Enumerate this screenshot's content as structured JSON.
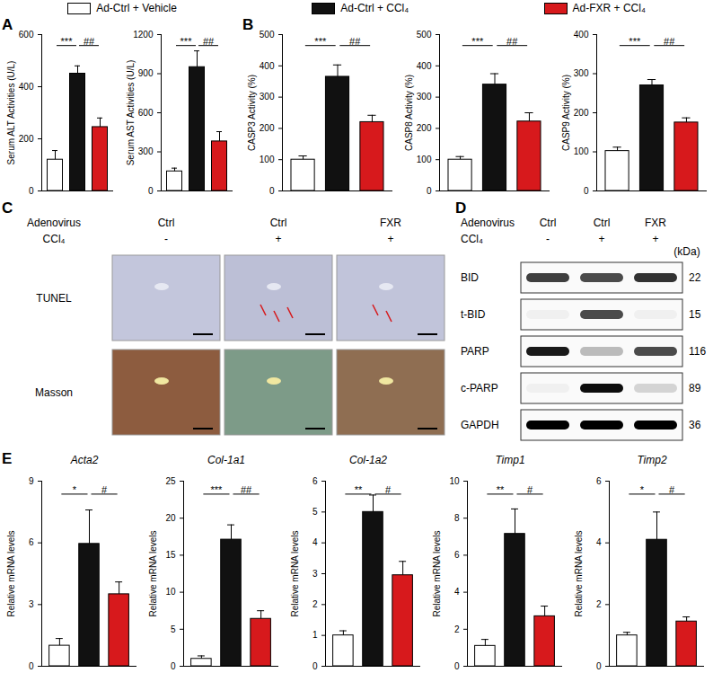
{
  "chart_data": [
    {
      "type": "bar",
      "panel": "A",
      "legend": "top",
      "categories": [
        "Ad-Ctrl + Vehicle",
        "Ad-Ctrl + CCl₄",
        "Ad-FXR + CCl₄"
      ],
      "colors": [
        "#ffffff",
        "#111111",
        "#d7191c"
      ],
      "y_label": "Serum ALT Activities (U/L)",
      "values": [
        120,
        450,
        245
      ],
      "errors": [
        35,
        30,
        35
      ],
      "significance": [
        "***",
        "##"
      ],
      "ylim": [
        0,
        600
      ],
      "yticks": [
        0,
        200,
        400,
        600
      ],
      "tick_labels": "y"
    },
    {
      "type": "bar",
      "categories": [
        "Ad-Ctrl + Vehicle",
        "Ad-Ctrl + CCl₄",
        "Ad-FXR + CCl₄"
      ],
      "colors": [
        "#ffffff",
        "#111111",
        "#d7191c"
      ],
      "y_label": "Serum AST Activities (U/L)",
      "values": [
        150,
        950,
        380
      ],
      "errors": [
        25,
        125,
        75
      ],
      "significance": [
        "***",
        "##"
      ],
      "ylim": [
        0,
        1200
      ],
      "yticks": [
        0,
        300,
        600,
        900,
        1200
      ],
      "tick_labels": "y"
    },
    {
      "type": "bar",
      "panel": "B",
      "categories": [
        "Ad-Ctrl + Vehicle",
        "Ad-Ctrl + CCl₄",
        "Ad-FXR + CCl₄"
      ],
      "colors": [
        "#ffffff",
        "#111111",
        "#d7191c"
      ],
      "y_label": "CASP3 Activity (%)",
      "values": [
        100,
        365,
        220
      ],
      "errors": [
        12,
        38,
        22
      ],
      "significance": [
        "***",
        "##"
      ],
      "ylim": [
        0,
        500
      ],
      "yticks": [
        0,
        100,
        200,
        300,
        400,
        500
      ],
      "tick_labels": "y"
    },
    {
      "type": "bar",
      "categories": [
        "Ad-Ctrl + Vehicle",
        "Ad-Ctrl + CCl₄",
        "Ad-FXR + CCl₄"
      ],
      "colors": [
        "#ffffff",
        "#111111",
        "#d7191c"
      ],
      "y_label": "CASP8 Activity (%)",
      "values": [
        100,
        340,
        222
      ],
      "errors": [
        10,
        35,
        28
      ],
      "significance": [
        "***",
        "##"
      ],
      "ylim": [
        0,
        500
      ],
      "yticks": [
        0,
        100,
        200,
        300,
        400,
        500
      ],
      "tick_labels": "y"
    },
    {
      "type": "bar",
      "categories": [
        "Ad-Ctrl + Vehicle",
        "Ad-Ctrl + CCl₄",
        "Ad-FXR + CCl₄"
      ],
      "colors": [
        "#ffffff",
        "#111111",
        "#d7191c"
      ],
      "y_label": "CASP9 Activity (%)",
      "values": [
        102,
        270,
        175
      ],
      "errors": [
        10,
        15,
        12
      ],
      "significance": [
        "***",
        "##"
      ],
      "ylim": [
        0,
        400
      ],
      "yticks": [
        0,
        100,
        200,
        300,
        400
      ],
      "tick_labels": "y"
    },
    {
      "type": "bar",
      "panel": "E",
      "title": "Acta2",
      "categories": [
        "Ad-Ctrl + Vehicle",
        "Ad-Ctrl + CCl₄",
        "Ad-FXR + CCl₄"
      ],
      "colors": [
        "#ffffff",
        "#111111",
        "#d7191c"
      ],
      "y_label": "Relative mRNA levels",
      "values": [
        1.0,
        5.95,
        3.5
      ],
      "errors": [
        0.35,
        1.65,
        0.6
      ],
      "significance": [
        "*",
        "#"
      ],
      "ylim": [
        0,
        9
      ],
      "yticks": [
        0,
        3,
        6,
        9
      ],
      "tick_labels": "y"
    },
    {
      "type": "bar",
      "title": "Col-1a1",
      "categories": [
        "Ad-Ctrl + Vehicle",
        "Ad-Ctrl + CCl₄",
        "Ad-FXR + CCl₄"
      ],
      "colors": [
        "#ffffff",
        "#111111",
        "#d7191c"
      ],
      "y_label": "Relative mRNA levels",
      "values": [
        1.0,
        17.1,
        6.4
      ],
      "errors": [
        0.4,
        2.0,
        1.1
      ],
      "significance": [
        "***",
        "##"
      ],
      "ylim": [
        0,
        25
      ],
      "yticks": [
        0,
        5,
        10,
        15,
        20,
        25
      ],
      "tick_labels": "y"
    },
    {
      "type": "bar",
      "title": "Col-1a2",
      "categories": [
        "Ad-Ctrl + Vehicle",
        "Ad-Ctrl + CCl₄",
        "Ad-FXR + CCl₄"
      ],
      "colors": [
        "#ffffff",
        "#111111",
        "#d7191c"
      ],
      "y_label": "Relative mRNA levels",
      "values": [
        1.0,
        5.0,
        2.95
      ],
      "errors": [
        0.15,
        0.55,
        0.45
      ],
      "significance": [
        "**",
        "#"
      ],
      "ylim": [
        0,
        6
      ],
      "yticks": [
        0,
        1,
        2,
        3,
        4,
        5,
        6
      ],
      "tick_labels": "y"
    },
    {
      "type": "bar",
      "title": "Timp1",
      "categories": [
        "Ad-Ctrl + Vehicle",
        "Ad-Ctrl + CCl₄",
        "Ad-FXR + CCl₄"
      ],
      "colors": [
        "#ffffff",
        "#111111",
        "#d7191c"
      ],
      "y_label": "Relative mRNA levels",
      "values": [
        1.1,
        7.15,
        2.7
      ],
      "errors": [
        0.35,
        1.35,
        0.55
      ],
      "significance": [
        "**",
        "#"
      ],
      "ylim": [
        0,
        10
      ],
      "yticks": [
        0,
        2,
        4,
        6,
        8,
        10
      ],
      "tick_labels": "y"
    },
    {
      "type": "bar",
      "title": "Timp2",
      "categories": [
        "Ad-Ctrl + Vehicle",
        "Ad-Ctrl + CCl₄",
        "Ad-FXR + CCl₄"
      ],
      "colors": [
        "#ffffff",
        "#111111",
        "#d7191c"
      ],
      "y_label": "Relative mRNA levels",
      "values": [
        1.0,
        4.1,
        1.45
      ],
      "errors": [
        0.1,
        0.9,
        0.15
      ],
      "significance": [
        "*",
        "#"
      ],
      "ylim": [
        0,
        6
      ],
      "yticks": [
        0,
        2,
        4,
        6
      ],
      "tick_labels": "y"
    }
  ],
  "panel_c": {
    "label": "C",
    "header": [
      {
        "label": "Adenovirus",
        "values": [
          "Ctrl",
          "Ctrl",
          "FXR"
        ]
      },
      {
        "label": "CCl₄",
        "values": [
          "-",
          "+",
          "+"
        ]
      }
    ],
    "rows": [
      "TUNEL",
      "Masson"
    ]
  },
  "panel_d": {
    "label": "D",
    "header": [
      {
        "label": "Adenovirus",
        "values": [
          "Ctrl",
          "Ctrl",
          "FXR"
        ]
      },
      {
        "label": "CCl₄",
        "values": [
          "-",
          "+",
          "+"
        ]
      }
    ],
    "unit": "(kDa)",
    "bands": [
      {
        "name": "BID",
        "kda": 22,
        "signal": [
          0.75,
          0.7,
          0.8
        ]
      },
      {
        "name": "t-BID",
        "kda": 15,
        "signal": [
          0.04,
          0.7,
          0.04
        ]
      },
      {
        "name": "PARP",
        "kda": 116,
        "signal": [
          0.9,
          0.25,
          0.7
        ]
      },
      {
        "name": "c-PARP",
        "kda": 89,
        "signal": [
          0.04,
          0.95,
          0.15
        ]
      },
      {
        "name": "GAPDH",
        "kda": 36,
        "signal": [
          1,
          1,
          1
        ]
      }
    ]
  }
}
